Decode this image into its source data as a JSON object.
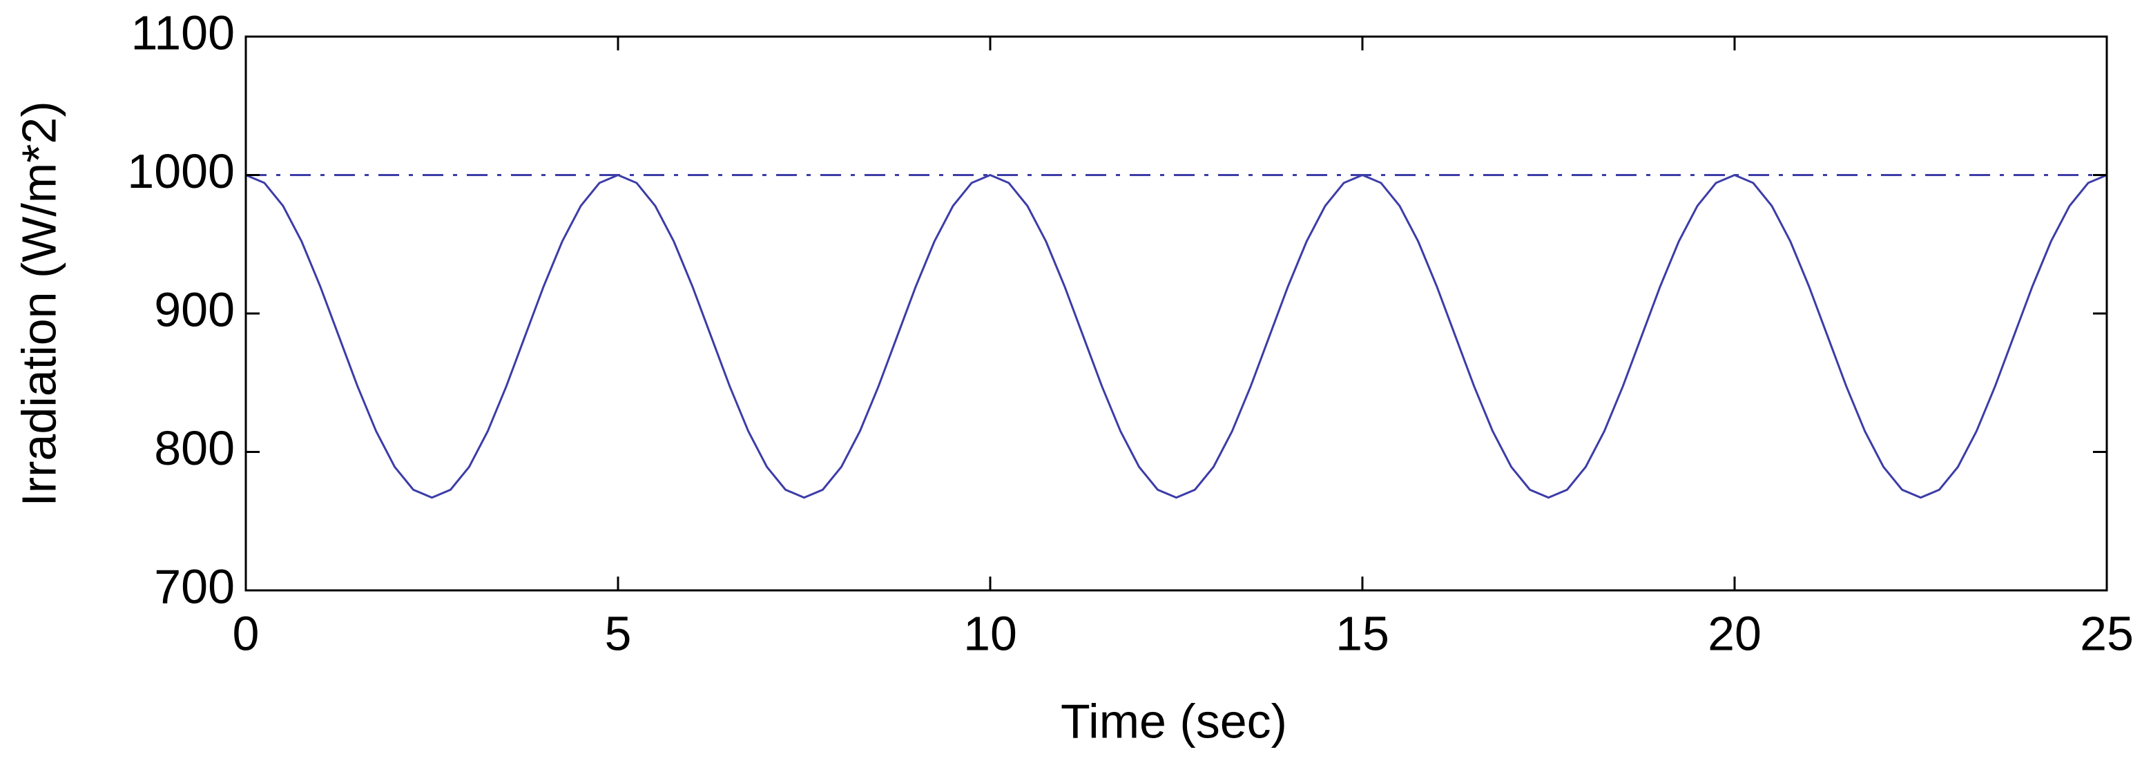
{
  "chart_data": {
    "type": "line",
    "xlabel": "Time (sec)",
    "ylabel": "Irradiation (W/m*2)",
    "xlim": [
      0,
      25
    ],
    "xticks": [
      0,
      5,
      10,
      15,
      20,
      25
    ],
    "ylim": [
      700,
      1100
    ],
    "yticks": [
      700,
      800,
      900,
      1000,
      1100
    ],
    "series": [
      {
        "color": "#3c3ca8",
        "style": "solid",
        "x": [
          0,
          0.25,
          0.5,
          0.75,
          1,
          1.25,
          1.5,
          1.75,
          2,
          2.25,
          2.5,
          2.75,
          3,
          3.25,
          3.5,
          3.75,
          4,
          4.25,
          4.5,
          4.75,
          5,
          5.25,
          5.5,
          5.75,
          6,
          6.25,
          6.5,
          6.75,
          7,
          7.25,
          7.5,
          7.75,
          8,
          8.25,
          8.5,
          8.75,
          9,
          9.25,
          9.5,
          9.75,
          10,
          10.25,
          10.5,
          10.75,
          11,
          11.25,
          11.5,
          11.75,
          12,
          12.25,
          12.5,
          12.75,
          13,
          13.25,
          13.5,
          13.75,
          14,
          14.25,
          14.5,
          14.75,
          15,
          15.25,
          15.5,
          15.75,
          16,
          16.25,
          16.5,
          16.75,
          17,
          17.25,
          17.5,
          17.75,
          18,
          18.25,
          18.5,
          18.75,
          19,
          19.25,
          19.5,
          19.75,
          20,
          20.25,
          20.5,
          20.75,
          21,
          21.25,
          21.5,
          21.75,
          22,
          22.25,
          22.5,
          22.75,
          23,
          23.25,
          23.5,
          23.75,
          24,
          24.25,
          24.5,
          24.75,
          25
        ],
        "values": [
          1000,
          994.3,
          977.7,
          952,
          919.5,
          883.5,
          847.5,
          815,
          789.2,
          772.7,
          767,
          772.7,
          789.2,
          815,
          847.5,
          883.5,
          919.5,
          952,
          977.7,
          994.3,
          1000,
          994.3,
          977.7,
          952,
          919.5,
          883.5,
          847.5,
          815,
          789.2,
          772.7,
          767,
          772.7,
          789.2,
          815,
          847.5,
          883.5,
          919.5,
          952,
          977.7,
          994.3,
          1000,
          994.3,
          977.7,
          952,
          919.5,
          883.5,
          847.5,
          815,
          789.2,
          772.7,
          767,
          772.7,
          789.2,
          815,
          847.5,
          883.5,
          919.5,
          952,
          977.7,
          994.3,
          1000,
          994.3,
          977.7,
          952,
          919.5,
          883.5,
          847.5,
          815,
          789.2,
          772.7,
          767,
          772.7,
          789.2,
          815,
          847.5,
          883.5,
          919.5,
          952,
          977.7,
          994.3,
          1000,
          994.3,
          977.7,
          952,
          919.5,
          883.5,
          847.5,
          815,
          789.2,
          772.7,
          767,
          772.7,
          789.2,
          815,
          847.5,
          883.5,
          919.5,
          952,
          977.7,
          994.3,
          1000
        ]
      },
      {
        "color": "#3c3ca8",
        "style": "dashdot",
        "x": [
          0,
          25
        ],
        "values": [
          1000,
          1000
        ]
      }
    ]
  }
}
